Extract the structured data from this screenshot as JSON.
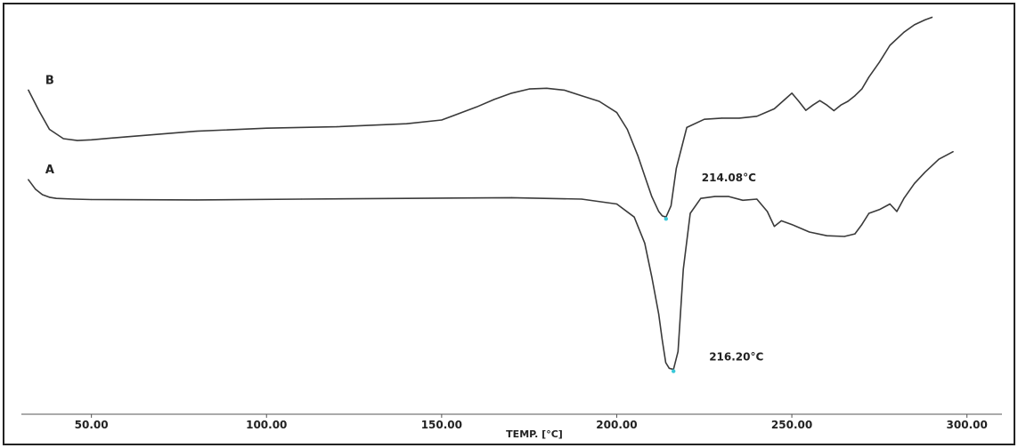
{
  "chart_data": {
    "type": "line",
    "title": "",
    "xlabel": "TEMP. [°C]",
    "ylabel": "",
    "xlim": [
      30,
      310
    ],
    "x_ticks": [
      50,
      100,
      150,
      200,
      250,
      300
    ],
    "x_tick_labels": [
      "50.00",
      "100.00",
      "150.00",
      "200.00",
      "250.00",
      "300.00"
    ],
    "grid": false,
    "legend": "none",
    "series": [
      {
        "name": "B",
        "color": "#3a3a3a",
        "x": [
          32,
          35,
          38,
          42,
          46,
          50,
          60,
          80,
          100,
          120,
          140,
          150,
          160,
          165,
          170,
          175,
          180,
          185,
          190,
          195,
          200,
          203,
          206,
          208,
          210,
          212,
          213,
          214.08,
          215.5,
          217,
          220,
          225,
          230,
          235,
          240,
          245,
          248,
          250,
          252,
          254,
          256,
          258,
          260,
          262,
          264,
          266,
          268,
          270,
          272,
          275,
          278,
          282,
          285,
          288,
          290
        ],
        "y": [
          0.83,
          0.775,
          0.725,
          0.7,
          0.695,
          0.697,
          0.705,
          0.72,
          0.728,
          0.732,
          0.74,
          0.75,
          0.785,
          0.805,
          0.822,
          0.833,
          0.835,
          0.83,
          0.815,
          0.8,
          0.77,
          0.725,
          0.655,
          0.6,
          0.545,
          0.505,
          0.493,
          0.49,
          0.52,
          0.62,
          0.73,
          0.752,
          0.755,
          0.755,
          0.76,
          0.78,
          0.805,
          0.822,
          0.8,
          0.776,
          0.79,
          0.802,
          0.79,
          0.775,
          0.79,
          0.8,
          0.815,
          0.833,
          0.865,
          0.905,
          0.95,
          0.985,
          1.005,
          1.018,
          1.025
        ]
      },
      {
        "name": "A",
        "color": "#3a3a3a",
        "x": [
          32,
          34,
          36,
          38,
          40,
          45,
          50,
          80,
          110,
          140,
          170,
          190,
          200,
          205,
          208,
          210,
          212,
          213,
          214,
          215,
          216.2,
          217.5,
          219,
          221,
          224,
          228,
          232,
          236,
          240,
          243,
          245,
          247,
          250,
          255,
          260,
          265,
          268,
          270,
          272,
          275,
          278,
          280,
          282,
          285,
          288,
          292,
          296
        ],
        "y": [
          0.59,
          0.565,
          0.55,
          0.543,
          0.54,
          0.538,
          0.537,
          0.536,
          0.538,
          0.54,
          0.542,
          0.538,
          0.525,
          0.49,
          0.42,
          0.33,
          0.23,
          0.16,
          0.1,
          0.085,
          0.082,
          0.13,
          0.35,
          0.5,
          0.54,
          0.545,
          0.545,
          0.535,
          0.538,
          0.505,
          0.465,
          0.48,
          0.47,
          0.45,
          0.44,
          0.438,
          0.445,
          0.47,
          0.5,
          0.51,
          0.525,
          0.505,
          0.54,
          0.58,
          0.61,
          0.645,
          0.665
        ]
      }
    ],
    "annotations": [
      {
        "text": "214.08°C",
        "x": 214.08,
        "y": 0.49,
        "series": "B"
      },
      {
        "text": "216.20°C",
        "x": 216.2,
        "y": 0.082,
        "series": "A"
      }
    ]
  }
}
